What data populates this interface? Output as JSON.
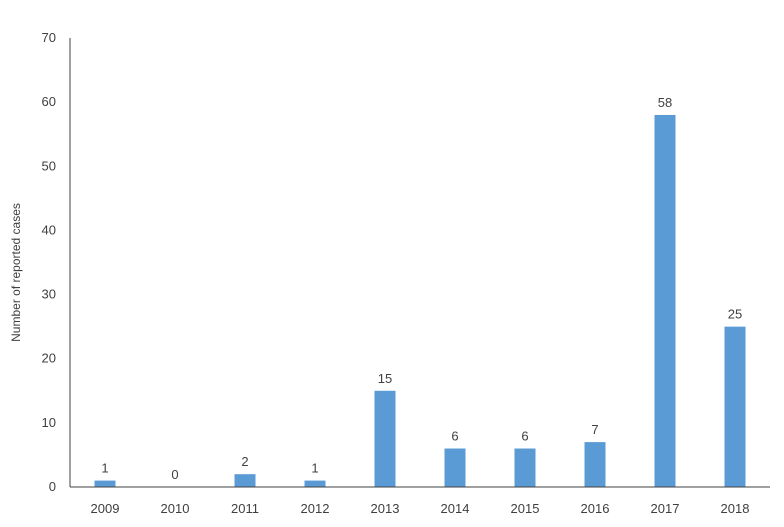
{
  "chart_data": {
    "type": "bar",
    "categories": [
      "2009",
      "2010",
      "2011",
      "2012",
      "2013",
      "2014",
      "2015",
      "2016",
      "2017",
      "2018"
    ],
    "values": [
      1,
      0,
      2,
      1,
      15,
      6,
      6,
      7,
      58,
      25
    ],
    "data_labels": [
      "1",
      "0",
      "2",
      "1",
      "15",
      "6",
      "6",
      "7",
      "58",
      "25"
    ],
    "xlabel": "",
    "ylabel": "Number of reported cases",
    "ylim": [
      0,
      70
    ],
    "yticks": [
      "0",
      "10",
      "20",
      "30",
      "40",
      "50",
      "60",
      "70"
    ],
    "grid": false,
    "legend": "none",
    "colors": {
      "bar": "#5b9bd5",
      "axis": "#404040",
      "text": "#404040"
    }
  }
}
